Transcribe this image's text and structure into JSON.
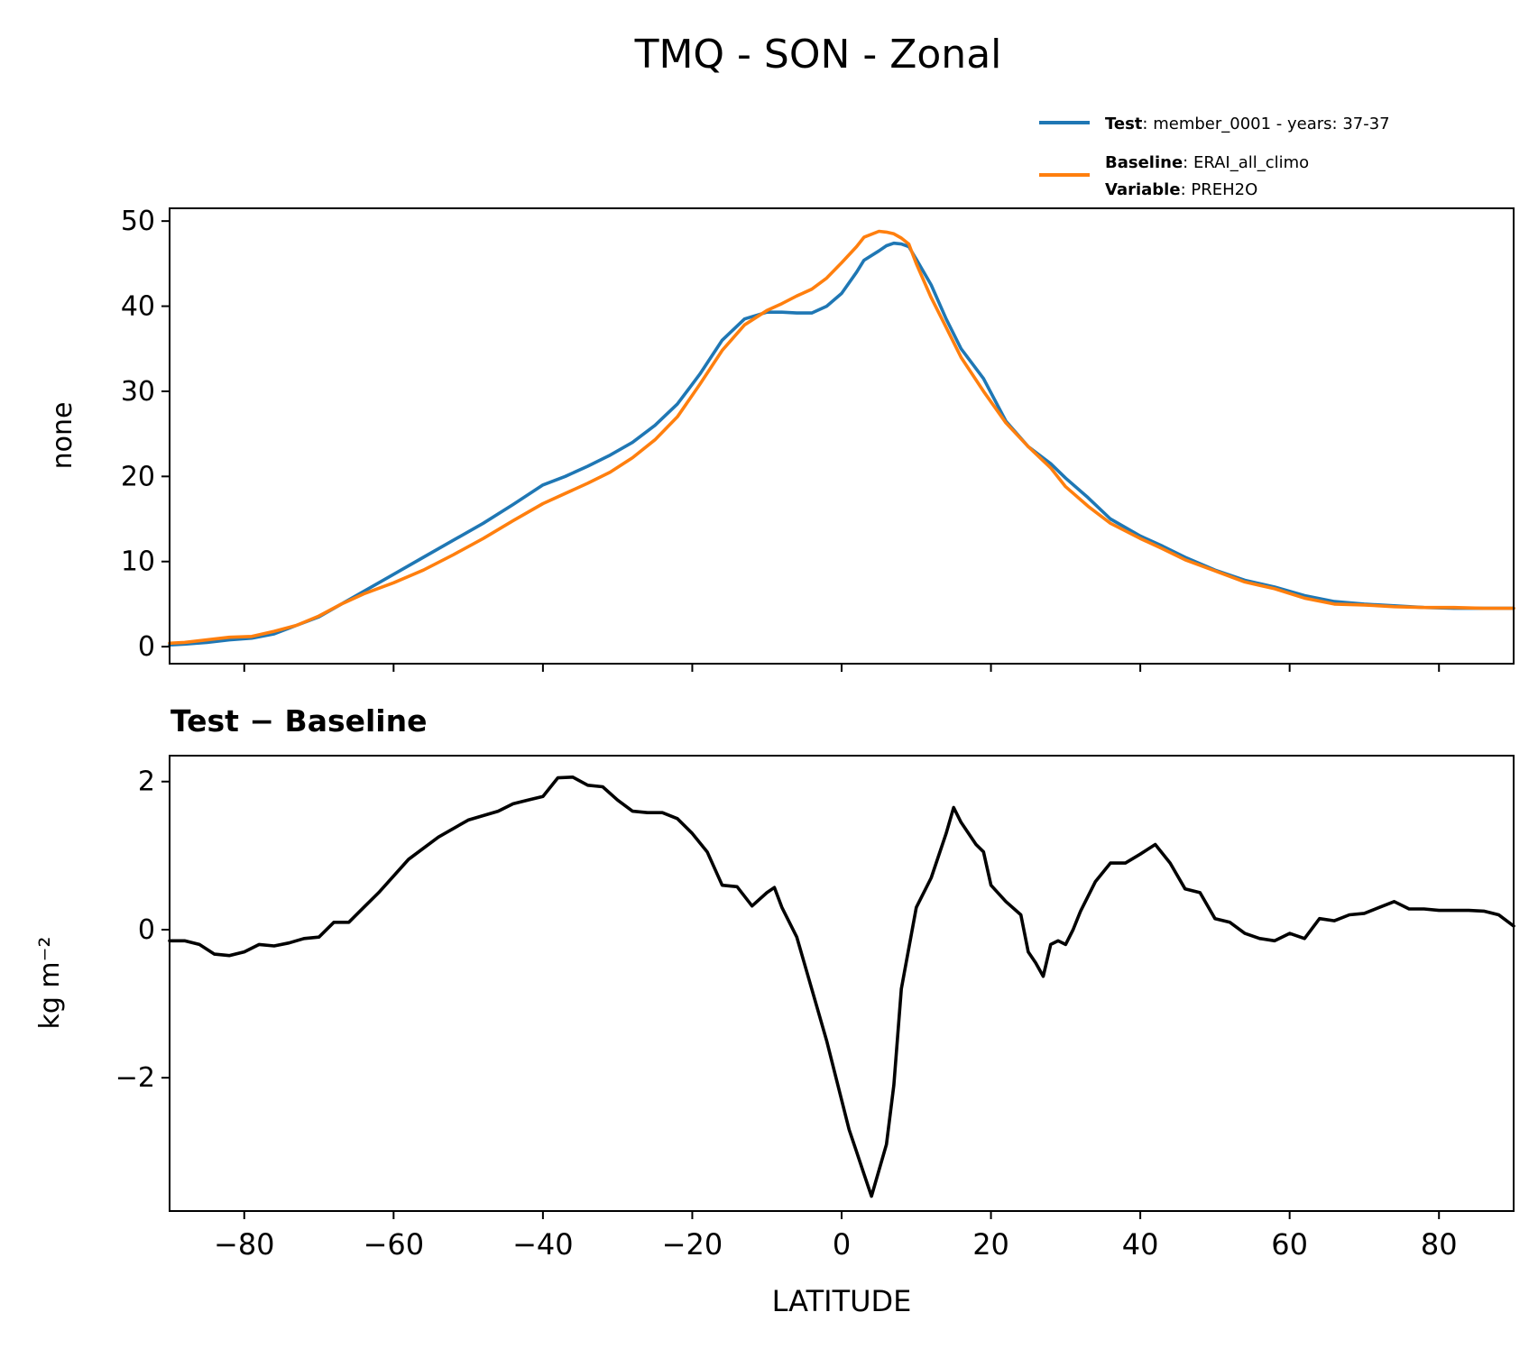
{
  "chart_data": [
    {
      "type": "line",
      "title": "TMQ - SON - Zonal",
      "xlabel": "",
      "ylabel": "none",
      "xlim": [
        -90,
        90
      ],
      "ylim": [
        -2,
        51.5
      ],
      "yticks": [
        0,
        10,
        20,
        30,
        40,
        50
      ],
      "xticks": [
        -80,
        -60,
        -40,
        -20,
        0,
        20,
        40,
        60,
        80
      ],
      "grid": false,
      "legend_position": "above-right",
      "legend": [
        {
          "bold": "Test",
          "text": ": member_0001 - years: 37-37",
          "color": "#1f77b4"
        },
        {
          "bold": "Baseline",
          "text": ": ERAI_all_climo",
          "bold2": "Variable",
          "text2": ": PREH2O",
          "color": "#ff7f0e"
        }
      ],
      "x": [
        -90,
        -88,
        -85,
        -82,
        -79,
        -76,
        -73,
        -70,
        -67,
        -64,
        -60,
        -56,
        -52,
        -48,
        -44,
        -40,
        -37,
        -34,
        -31,
        -28,
        -25,
        -22,
        -19,
        -16,
        -13,
        -10,
        -8,
        -6,
        -4,
        -2,
        0,
        2,
        3,
        5,
        6,
        7,
        8,
        9,
        10,
        12,
        14,
        16,
        19,
        22,
        25,
        28,
        30,
        33,
        36,
        40,
        43,
        46,
        50,
        54,
        58,
        62,
        66,
        70,
        74,
        78,
        82,
        86,
        90
      ],
      "series": [
        {
          "name": "Test",
          "color": "#1f77b4",
          "values": [
            0.2,
            0.3,
            0.5,
            0.8,
            1.0,
            1.5,
            2.5,
            3.5,
            5.0,
            6.5,
            8.5,
            10.5,
            12.5,
            14.5,
            16.7,
            19.0,
            20.0,
            21.2,
            22.5,
            24.0,
            26.0,
            28.5,
            32.0,
            36.0,
            38.5,
            39.3,
            39.3,
            39.2,
            39.2,
            40.0,
            41.5,
            44.0,
            45.4,
            46.5,
            47.1,
            47.4,
            47.3,
            47.0,
            45.5,
            42.5,
            38.5,
            35.0,
            31.5,
            26.5,
            23.5,
            21.5,
            19.8,
            17.5,
            15.0,
            13.0,
            11.8,
            10.5,
            9.0,
            7.8,
            7.0,
            6.0,
            5.3,
            5.0,
            4.8,
            4.6,
            4.5,
            4.5,
            4.5
          ]
        },
        {
          "name": "Baseline",
          "color": "#ff7f0e",
          "values": [
            0.4,
            0.5,
            0.8,
            1.1,
            1.2,
            1.8,
            2.5,
            3.6,
            5.0,
            6.2,
            7.5,
            9.0,
            10.8,
            12.7,
            14.8,
            16.8,
            18.0,
            19.2,
            20.5,
            22.2,
            24.3,
            27.0,
            30.8,
            34.8,
            37.8,
            39.5,
            40.3,
            41.2,
            42.0,
            43.3,
            45.1,
            47.0,
            48.1,
            48.8,
            48.7,
            48.5,
            48.0,
            47.3,
            45.0,
            41.0,
            37.5,
            34.0,
            30.0,
            26.3,
            23.5,
            21.0,
            18.8,
            16.5,
            14.5,
            12.7,
            11.5,
            10.2,
            8.9,
            7.6,
            6.8,
            5.7,
            5.0,
            4.9,
            4.7,
            4.6,
            4.6,
            4.5,
            4.5
          ]
        }
      ]
    },
    {
      "type": "line",
      "title": "Test − Baseline",
      "xlabel": "LATITUDE",
      "ylabel": "kg m⁻²",
      "xlim": [
        -90,
        90
      ],
      "ylim": [
        -3.8,
        2.35
      ],
      "yticks": [
        -2,
        0,
        2
      ],
      "ytick_labels": [
        "−2",
        "0",
        "2"
      ],
      "xticks": [
        -80,
        -60,
        -40,
        -20,
        0,
        20,
        40,
        60,
        80
      ],
      "xtick_labels": [
        "−80",
        "−60",
        "−40",
        "−20",
        "0",
        "20",
        "40",
        "60",
        "80"
      ],
      "grid": false,
      "series": [
        {
          "name": "Test − Baseline",
          "color": "#000000",
          "x": [
            -90,
            -88,
            -86,
            -84,
            -82,
            -80,
            -78,
            -76,
            -74,
            -72,
            -70,
            -68,
            -66,
            -64,
            -62,
            -58,
            -54,
            -50,
            -46,
            -44,
            -42,
            -40,
            -38,
            -36,
            -34,
            -32,
            -30,
            -28,
            -26,
            -24,
            -22,
            -20,
            -18,
            -16,
            -14,
            -12,
            -10,
            -9,
            -8,
            -6,
            -4,
            -2,
            0,
            1,
            2,
            3,
            4,
            6,
            7,
            8,
            10,
            12,
            14,
            15,
            16,
            18,
            19,
            20,
            22,
            24,
            25,
            26,
            27,
            28,
            29,
            30,
            31,
            32,
            34,
            36,
            38,
            40,
            42,
            44,
            46,
            48,
            50,
            52,
            54,
            56,
            58,
            60,
            62,
            64,
            66,
            68,
            70,
            72,
            74,
            76,
            78,
            80,
            82,
            84,
            86,
            88,
            90
          ],
          "values": [
            -0.15,
            -0.15,
            -0.2,
            -0.33,
            -0.35,
            -0.3,
            -0.2,
            -0.22,
            -0.18,
            -0.12,
            -0.1,
            0.1,
            0.1,
            0.3,
            0.5,
            0.95,
            1.25,
            1.48,
            1.6,
            1.7,
            1.75,
            1.8,
            2.05,
            2.06,
            1.95,
            1.93,
            1.75,
            1.6,
            1.58,
            1.58,
            1.5,
            1.3,
            1.05,
            0.6,
            0.58,
            0.32,
            0.5,
            0.57,
            0.3,
            -0.1,
            -0.8,
            -1.5,
            -2.3,
            -2.7,
            -3.0,
            -3.3,
            -3.6,
            -2.9,
            -2.1,
            -0.8,
            0.3,
            0.7,
            1.3,
            1.65,
            1.45,
            1.15,
            1.05,
            0.6,
            0.38,
            0.2,
            -0.3,
            -0.45,
            -0.63,
            -0.2,
            -0.15,
            -0.2,
            0.0,
            0.25,
            0.65,
            0.9,
            0.9,
            1.02,
            1.15,
            0.9,
            0.55,
            0.5,
            0.15,
            0.1,
            -0.05,
            -0.12,
            -0.15,
            -0.05,
            -0.12,
            0.15,
            0.12,
            0.2,
            0.22,
            0.3,
            0.38,
            0.28,
            0.28,
            0.26,
            0.26,
            0.26,
            0.25,
            0.2,
            0.05
          ]
        }
      ]
    }
  ]
}
